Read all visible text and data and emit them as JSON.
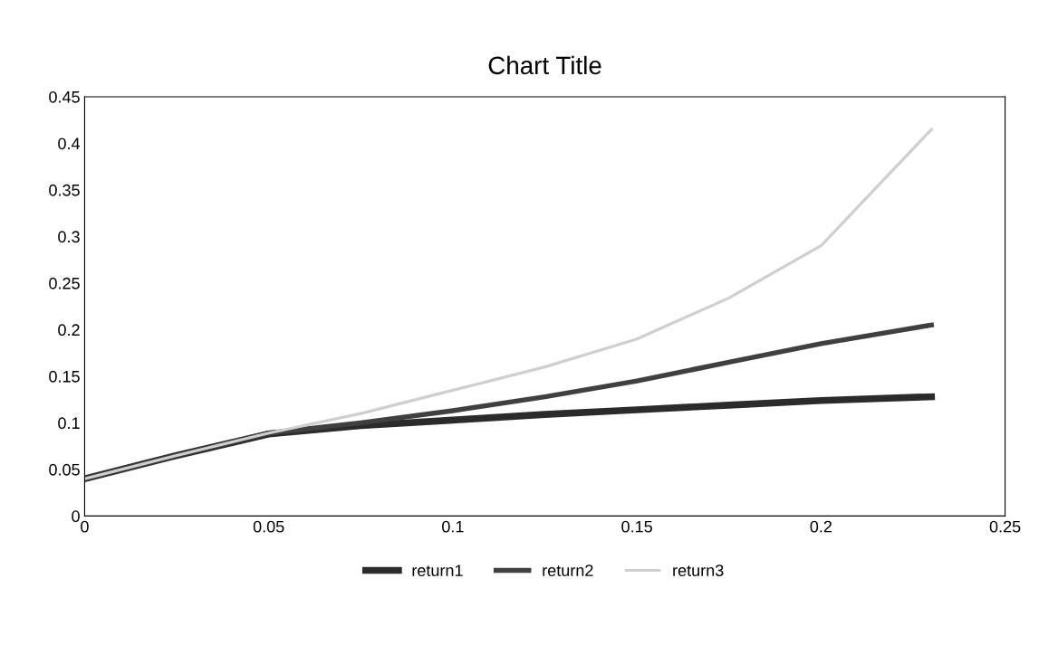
{
  "chart_data": {
    "type": "line",
    "title": "Chart Title",
    "series": [
      {
        "name": "return1",
        "color": "#2b2b2b",
        "x": [
          0,
          0.025,
          0.05,
          0.075,
          0.1,
          0.125,
          0.15,
          0.175,
          0.2,
          0.23
        ],
        "values": [
          0.04,
          0.065,
          0.088,
          0.097,
          0.103,
          0.109,
          0.114,
          0.119,
          0.124,
          0.128
        ]
      },
      {
        "name": "return2",
        "color": "#404040",
        "x": [
          0,
          0.025,
          0.05,
          0.075,
          0.1,
          0.125,
          0.15,
          0.175,
          0.2,
          0.23
        ],
        "values": [
          0.04,
          0.065,
          0.089,
          0.1,
          0.113,
          0.128,
          0.145,
          0.165,
          0.185,
          0.205
        ]
      },
      {
        "name": "return3",
        "color": "#cfcfcf",
        "x": [
          0,
          0.025,
          0.05,
          0.075,
          0.1,
          0.125,
          0.15,
          0.175,
          0.2,
          0.23
        ],
        "values": [
          0.04,
          0.065,
          0.089,
          0.11,
          0.135,
          0.16,
          0.19,
          0.234,
          0.29,
          0.415
        ]
      }
    ],
    "xlim": [
      0,
      0.25
    ],
    "xticks": [
      0,
      0.05,
      0.1,
      0.15,
      0.2,
      0.25
    ],
    "ylim": [
      0,
      0.45
    ],
    "yticks": [
      0,
      0.05,
      0.1,
      0.15,
      0.2,
      0.25,
      0.3,
      0.35,
      0.4,
      0.45
    ],
    "grid": false,
    "legend": "bottom",
    "marker": "none",
    "line_style": "solid"
  }
}
